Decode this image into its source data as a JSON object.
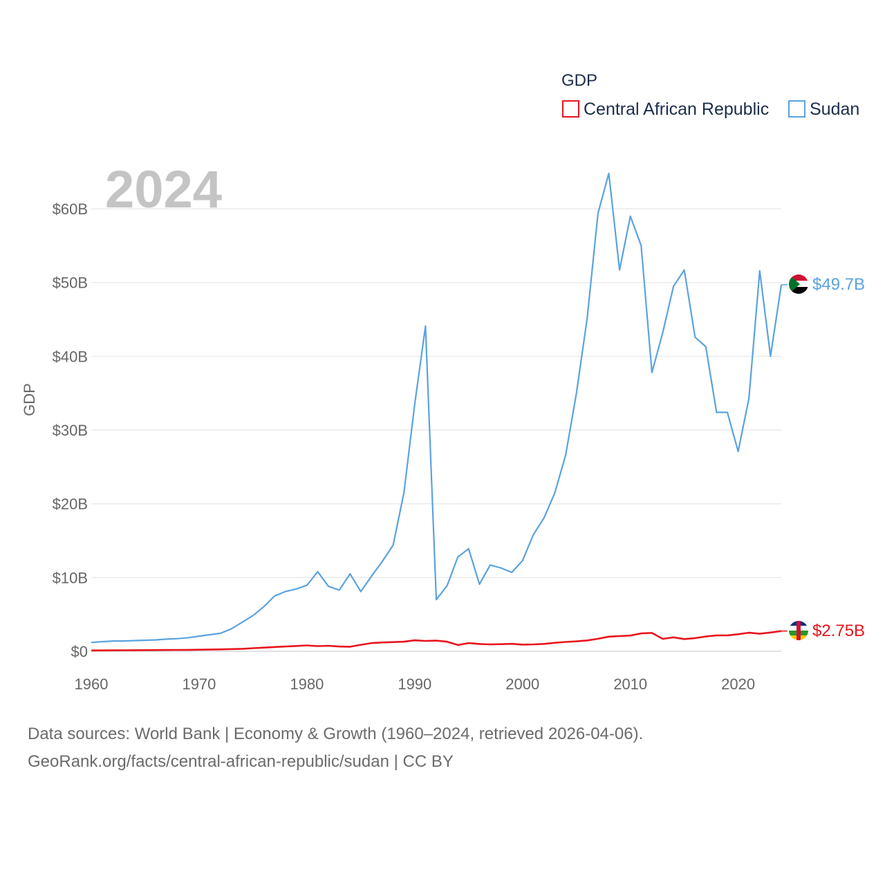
{
  "legend": {
    "title": "GDP",
    "items": [
      {
        "name": "Central African Republic",
        "color": "#e8141c"
      },
      {
        "name": "Sudan",
        "color": "#5aa2e0"
      }
    ]
  },
  "year_label": "2024",
  "footer": {
    "line1": "Data sources: World Bank | Economy & Growth (1960–2024, retrieved 2026-04-06).",
    "line2": "GeoRank.org/facts/central-african-republic/sudan | CC BY"
  },
  "chart_data": {
    "type": "line",
    "title": "GDP",
    "ylabel": "GDP",
    "xlabel": "",
    "xlim": [
      1960,
      2024
    ],
    "ylim": [
      0,
      60
    ],
    "y_unit": "billion USD",
    "x_ticks": [
      1960,
      1970,
      1980,
      1990,
      2000,
      2010,
      2020
    ],
    "y_ticks": [
      {
        "value": 0,
        "label": "$0"
      },
      {
        "value": 10,
        "label": "$10B"
      },
      {
        "value": 20,
        "label": "$20B"
      },
      {
        "value": 30,
        "label": "$30B"
      },
      {
        "value": 40,
        "label": "$40B"
      },
      {
        "value": 50,
        "label": "$50B"
      },
      {
        "value": 60,
        "label": "$60B"
      }
    ],
    "x": [
      1960,
      1961,
      1962,
      1963,
      1964,
      1965,
      1966,
      1967,
      1968,
      1969,
      1970,
      1971,
      1972,
      1973,
      1974,
      1975,
      1976,
      1977,
      1978,
      1979,
      1980,
      1981,
      1982,
      1983,
      1984,
      1985,
      1986,
      1987,
      1988,
      1989,
      1990,
      1991,
      1992,
      1993,
      1994,
      1995,
      1996,
      1997,
      1998,
      1999,
      2000,
      2001,
      2002,
      2003,
      2004,
      2005,
      2006,
      2007,
      2008,
      2009,
      2010,
      2011,
      2012,
      2013,
      2014,
      2015,
      2016,
      2017,
      2018,
      2019,
      2020,
      2021,
      2022,
      2023,
      2024
    ],
    "series": [
      {
        "name": "Sudan",
        "color": "#5aa2e0",
        "end_label": "$49.7B",
        "values": [
          1.2,
          1.3,
          1.4,
          1.4,
          1.45,
          1.5,
          1.55,
          1.65,
          1.72,
          1.85,
          2.05,
          2.25,
          2.45,
          3.05,
          3.95,
          4.85,
          6.05,
          7.5,
          8.1,
          8.45,
          8.95,
          10.8,
          8.8,
          8.3,
          10.5,
          8.1,
          10.2,
          12.2,
          14.4,
          21.5,
          33.5,
          44.1,
          7.0,
          8.9,
          12.8,
          13.9,
          9.1,
          11.7,
          11.3,
          10.7,
          12.3,
          15.8,
          18.1,
          21.5,
          26.6,
          35.0,
          45.2,
          59.4,
          64.8,
          51.7,
          59.0,
          55.0,
          37.8,
          43.2,
          49.5,
          51.7,
          42.6,
          41.3,
          32.4,
          32.4,
          27.1,
          34.3,
          51.6,
          40.0,
          49.7
        ]
      },
      {
        "name": "Central African Republic",
        "color": "#e8141c",
        "end_label": "$2.75B",
        "values": [
          0.11,
          0.12,
          0.13,
          0.14,
          0.15,
          0.16,
          0.17,
          0.18,
          0.19,
          0.2,
          0.22,
          0.24,
          0.26,
          0.3,
          0.34,
          0.42,
          0.5,
          0.58,
          0.65,
          0.72,
          0.8,
          0.7,
          0.75,
          0.65,
          0.62,
          0.88,
          1.12,
          1.2,
          1.25,
          1.3,
          1.49,
          1.41,
          1.44,
          1.3,
          0.85,
          1.12,
          0.99,
          0.94,
          0.97,
          1.01,
          0.91,
          0.94,
          1.0,
          1.15,
          1.27,
          1.35,
          1.47,
          1.7,
          1.99,
          2.06,
          2.14,
          2.43,
          2.49,
          1.69,
          1.89,
          1.66,
          1.79,
          2.01,
          2.16,
          2.17,
          2.32,
          2.52,
          2.38,
          2.55,
          2.75
        ]
      }
    ]
  }
}
